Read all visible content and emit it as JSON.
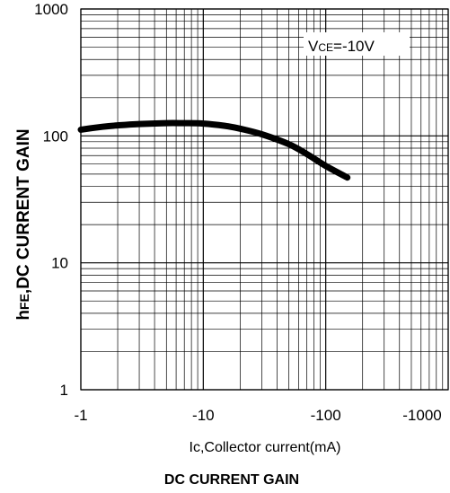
{
  "chart_data": {
    "type": "line",
    "title": "DC CURRENT GAIN",
    "xlabel": "Ic,Collector current(mA)",
    "ylabel": {
      "prefix": "h",
      "subscript": "FE",
      "rest": ",DC CURRENT GAIN"
    },
    "x_scale": "log",
    "y_scale": "log",
    "xlim": [
      -1,
      -1000
    ],
    "ylim": [
      1,
      1000
    ],
    "x_ticks": [
      {
        "value": -1,
        "label": "-1"
      },
      {
        "value": -10,
        "label": "-10"
      },
      {
        "value": -100,
        "label": "-100"
      },
      {
        "value": -1000,
        "label": "-1000"
      }
    ],
    "y_ticks": [
      {
        "value": 1,
        "label": "1"
      },
      {
        "value": 10,
        "label": "10"
      },
      {
        "value": 100,
        "label": "100"
      },
      {
        "value": 1000,
        "label": "1000"
      }
    ],
    "grid": true,
    "annotation": {
      "prefix": "V",
      "subscript": "CE",
      "rest": "=-10V"
    },
    "series": [
      {
        "color": "#000000",
        "x": [
          -1,
          -1.5,
          -2,
          -3,
          -5,
          -7,
          -10,
          -15,
          -20,
          -30,
          -50,
          -70,
          -100,
          -150
        ],
        "y": [
          112,
          118,
          121,
          124,
          126,
          126,
          125,
          120,
          114,
          103,
          86,
          72,
          58,
          47
        ]
      }
    ]
  }
}
